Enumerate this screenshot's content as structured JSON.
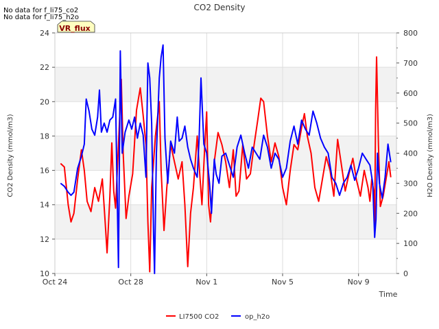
{
  "chart_data": {
    "type": "line",
    "title": "CO2 Density",
    "xlabel": "Time",
    "ylabel_left": "CO2 Density (mmol/m3)",
    "ylabel_right": "H2O Density (mmol/m3)",
    "notes": [
      "No data for f_li75_co2",
      "No data for f_li75_h2o"
    ],
    "badge": "VR_flux",
    "x_ticks": [
      {
        "day": 0,
        "label": "Oct 24"
      },
      {
        "day": 4,
        "label": "Oct 28"
      },
      {
        "day": 8,
        "label": "Nov 1"
      },
      {
        "day": 12,
        "label": "Nov 5"
      },
      {
        "day": 16,
        "label": "Nov 9"
      }
    ],
    "xlim": [
      0,
      18
    ],
    "ylim_left": [
      10,
      24
    ],
    "ylim_right": [
      0,
      800
    ],
    "yticks_left": [
      10,
      12,
      14,
      16,
      18,
      20,
      22,
      24
    ],
    "yticks_right": [
      0,
      100,
      200,
      300,
      400,
      500,
      600,
      700,
      800
    ],
    "series": [
      {
        "name": "LI7500 CO2",
        "axis": "left",
        "color": "#ff0000",
        "points": [
          [
            0.3,
            16.4
          ],
          [
            0.5,
            16.2
          ],
          [
            0.7,
            14.0
          ],
          [
            0.85,
            13.0
          ],
          [
            1.0,
            13.5
          ],
          [
            1.2,
            15.5
          ],
          [
            1.4,
            17.2
          ],
          [
            1.55,
            16.0
          ],
          [
            1.7,
            14.2
          ],
          [
            1.9,
            13.6
          ],
          [
            2.1,
            15.0
          ],
          [
            2.3,
            14.2
          ],
          [
            2.5,
            15.5
          ],
          [
            2.65,
            13.0
          ],
          [
            2.75,
            11.2
          ],
          [
            2.9,
            14.5
          ],
          [
            3.0,
            17.6
          ],
          [
            3.1,
            14.8
          ],
          [
            3.2,
            13.8
          ],
          [
            3.35,
            17.5
          ],
          [
            3.5,
            21.3
          ],
          [
            3.6,
            17.0
          ],
          [
            3.75,
            13.2
          ],
          [
            3.9,
            14.5
          ],
          [
            4.1,
            15.8
          ],
          [
            4.3,
            19.5
          ],
          [
            4.5,
            20.8
          ],
          [
            4.65,
            19.2
          ],
          [
            4.8,
            17.5
          ],
          [
            4.9,
            13.0
          ],
          [
            5.0,
            10.1
          ],
          [
            5.1,
            15.0
          ],
          [
            5.3,
            18.0
          ],
          [
            5.5,
            20.0
          ],
          [
            5.6,
            16.0
          ],
          [
            5.75,
            12.5
          ],
          [
            5.9,
            15.0
          ],
          [
            6.1,
            17.5
          ],
          [
            6.3,
            16.5
          ],
          [
            6.5,
            15.5
          ],
          [
            6.7,
            16.5
          ],
          [
            6.85,
            14.0
          ],
          [
            7.0,
            10.4
          ],
          [
            7.15,
            13.5
          ],
          [
            7.3,
            15.0
          ],
          [
            7.5,
            18.0
          ],
          [
            7.65,
            15.5
          ],
          [
            7.75,
            14.0
          ],
          [
            7.9,
            17.5
          ],
          [
            8.0,
            19.4
          ],
          [
            8.1,
            14.0
          ],
          [
            8.2,
            13.0
          ],
          [
            8.4,
            16.5
          ],
          [
            8.6,
            18.2
          ],
          [
            8.8,
            17.5
          ],
          [
            9.0,
            16.5
          ],
          [
            9.2,
            15.0
          ],
          [
            9.4,
            17.2
          ],
          [
            9.55,
            14.5
          ],
          [
            9.7,
            14.8
          ],
          [
            9.9,
            17.5
          ],
          [
            10.1,
            15.5
          ],
          [
            10.3,
            15.8
          ],
          [
            10.5,
            17.5
          ],
          [
            10.7,
            19.0
          ],
          [
            10.85,
            20.2
          ],
          [
            11.0,
            20.0
          ],
          [
            11.2,
            18.0
          ],
          [
            11.4,
            16.5
          ],
          [
            11.6,
            17.6
          ],
          [
            11.8,
            16.8
          ],
          [
            12.0,
            15.0
          ],
          [
            12.2,
            14.0
          ],
          [
            12.4,
            16.0
          ],
          [
            12.6,
            17.5
          ],
          [
            12.8,
            17.2
          ],
          [
            13.0,
            18.5
          ],
          [
            13.15,
            19.3
          ],
          [
            13.3,
            18.0
          ],
          [
            13.5,
            17.0
          ],
          [
            13.7,
            15.0
          ],
          [
            13.9,
            14.2
          ],
          [
            14.1,
            15.5
          ],
          [
            14.3,
            16.8
          ],
          [
            14.5,
            16.0
          ],
          [
            14.7,
            14.5
          ],
          [
            14.9,
            17.8
          ],
          [
            15.1,
            16.3
          ],
          [
            15.3,
            14.8
          ],
          [
            15.5,
            15.8
          ],
          [
            15.7,
            16.7
          ],
          [
            15.9,
            15.4
          ],
          [
            16.1,
            14.5
          ],
          [
            16.3,
            16.0
          ],
          [
            16.5,
            15.0
          ],
          [
            16.6,
            14.2
          ],
          [
            16.7,
            15.5
          ],
          [
            16.8,
            14.8
          ],
          [
            16.85,
            12.3
          ],
          [
            16.9,
            19.5
          ],
          [
            16.95,
            22.6
          ],
          [
            17.05,
            17.5
          ],
          [
            17.15,
            13.9
          ],
          [
            17.3,
            14.5
          ],
          [
            17.45,
            15.5
          ],
          [
            17.6,
            16.5
          ],
          [
            17.7,
            15.6
          ]
        ]
      },
      {
        "name": "op_h2o",
        "axis": "right",
        "color": "#0000ff",
        "points": [
          [
            0.3,
            300
          ],
          [
            0.5,
            290
          ],
          [
            0.7,
            270
          ],
          [
            0.85,
            260
          ],
          [
            1.0,
            270
          ],
          [
            1.2,
            350
          ],
          [
            1.4,
            390
          ],
          [
            1.55,
            430
          ],
          [
            1.65,
            580
          ],
          [
            1.8,
            540
          ],
          [
            1.95,
            480
          ],
          [
            2.1,
            460
          ],
          [
            2.25,
            520
          ],
          [
            2.35,
            610
          ],
          [
            2.45,
            470
          ],
          [
            2.6,
            500
          ],
          [
            2.75,
            470
          ],
          [
            2.9,
            510
          ],
          [
            3.05,
            520
          ],
          [
            3.2,
            580
          ],
          [
            3.3,
            200
          ],
          [
            3.35,
            20
          ],
          [
            3.45,
            740
          ],
          [
            3.55,
            400
          ],
          [
            3.7,
            470
          ],
          [
            3.9,
            510
          ],
          [
            4.05,
            480
          ],
          [
            4.2,
            520
          ],
          [
            4.35,
            450
          ],
          [
            4.5,
            500
          ],
          [
            4.65,
            460
          ],
          [
            4.8,
            320
          ],
          [
            4.9,
            700
          ],
          [
            5.0,
            650
          ],
          [
            5.1,
            500
          ],
          [
            5.2,
            130
          ],
          [
            5.25,
            0
          ],
          [
            5.35,
            400
          ],
          [
            5.5,
            650
          ],
          [
            5.6,
            720
          ],
          [
            5.7,
            760
          ],
          [
            5.8,
            450
          ],
          [
            5.95,
            300
          ],
          [
            6.1,
            440
          ],
          [
            6.3,
            400
          ],
          [
            6.45,
            520
          ],
          [
            6.55,
            440
          ],
          [
            6.7,
            450
          ],
          [
            6.85,
            490
          ],
          [
            7.0,
            420
          ],
          [
            7.15,
            380
          ],
          [
            7.3,
            350
          ],
          [
            7.5,
            320
          ],
          [
            7.6,
            450
          ],
          [
            7.7,
            650
          ],
          [
            7.85,
            430
          ],
          [
            8.0,
            400
          ],
          [
            8.15,
            300
          ],
          [
            8.25,
            200
          ],
          [
            8.4,
            380
          ],
          [
            8.5,
            330
          ],
          [
            8.65,
            300
          ],
          [
            8.8,
            390
          ],
          [
            9.0,
            400
          ],
          [
            9.2,
            360
          ],
          [
            9.4,
            320
          ],
          [
            9.6,
            420
          ],
          [
            9.8,
            460
          ],
          [
            10.0,
            400
          ],
          [
            10.2,
            350
          ],
          [
            10.4,
            420
          ],
          [
            10.6,
            400
          ],
          [
            10.8,
            380
          ],
          [
            11.0,
            460
          ],
          [
            11.2,
            420
          ],
          [
            11.4,
            350
          ],
          [
            11.6,
            400
          ],
          [
            11.8,
            380
          ],
          [
            12.0,
            320
          ],
          [
            12.2,
            350
          ],
          [
            12.4,
            440
          ],
          [
            12.6,
            490
          ],
          [
            12.8,
            430
          ],
          [
            13.0,
            510
          ],
          [
            13.2,
            480
          ],
          [
            13.4,
            460
          ],
          [
            13.6,
            540
          ],
          [
            13.8,
            500
          ],
          [
            14.0,
            450
          ],
          [
            14.2,
            420
          ],
          [
            14.4,
            400
          ],
          [
            14.6,
            320
          ],
          [
            14.8,
            300
          ],
          [
            15.0,
            260
          ],
          [
            15.2,
            300
          ],
          [
            15.4,
            320
          ],
          [
            15.6,
            360
          ],
          [
            15.8,
            310
          ],
          [
            16.0,
            350
          ],
          [
            16.2,
            400
          ],
          [
            16.4,
            380
          ],
          [
            16.6,
            360
          ],
          [
            16.75,
            300
          ],
          [
            16.85,
            120
          ],
          [
            16.92,
            180
          ],
          [
            17.0,
            400
          ],
          [
            17.1,
            300
          ],
          [
            17.25,
            250
          ],
          [
            17.4,
            320
          ],
          [
            17.55,
            430
          ],
          [
            17.7,
            370
          ]
        ]
      }
    ]
  }
}
